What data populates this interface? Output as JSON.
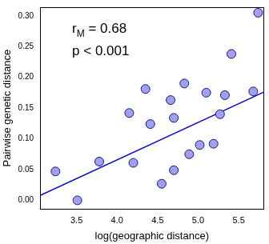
{
  "chart_data": {
    "type": "scatter",
    "x_label": "log(geographic distance)",
    "y_label": "Pairwise genetic distance",
    "x": [
      3.24,
      3.51,
      3.78,
      4.15,
      4.2,
      4.35,
      4.41,
      4.55,
      4.66,
      4.7,
      4.7,
      4.83,
      4.89,
      5.02,
      5.1,
      5.19,
      5.27,
      5.33,
      5.41,
      5.68,
      5.74
    ],
    "values": [
      0.047,
      0.0,
      0.063,
      0.142,
      0.061,
      0.181,
      0.124,
      0.027,
      0.163,
      0.049,
      0.134,
      0.19,
      0.075,
      0.09,
      0.175,
      0.092,
      0.14,
      0.171,
      0.238,
      0.177,
      0.305
    ],
    "color": "#9f9ff5",
    "marker": "circle",
    "trend_line": {
      "x": [
        3.05,
        5.81
      ],
      "y": [
        0.008,
        0.176
      ],
      "color": "#0000dd"
    },
    "annotations": [
      {
        "base": "r",
        "subscript": "M",
        "text": " = 0.68"
      },
      {
        "text": "p < 0.001"
      }
    ],
    "xlim": [
      3.05,
      5.81
    ],
    "ylim": [
      -0.014,
      0.314
    ],
    "xticks": [
      3.5,
      {
        "value": 4,
        "label": "4.0"
      },
      4.5,
      {
        "value": 5,
        "label": "5.0"
      },
      5.5
    ],
    "yticks": [
      {
        "value": 0,
        "label": "0.00"
      },
      0.05,
      {
        "value": 0.1,
        "label": "0.10"
      },
      0.15,
      {
        "value": 0.2,
        "label": "0.20"
      },
      0.25,
      {
        "value": 0.3,
        "label": "0.30"
      }
    ],
    "grid": false
  }
}
